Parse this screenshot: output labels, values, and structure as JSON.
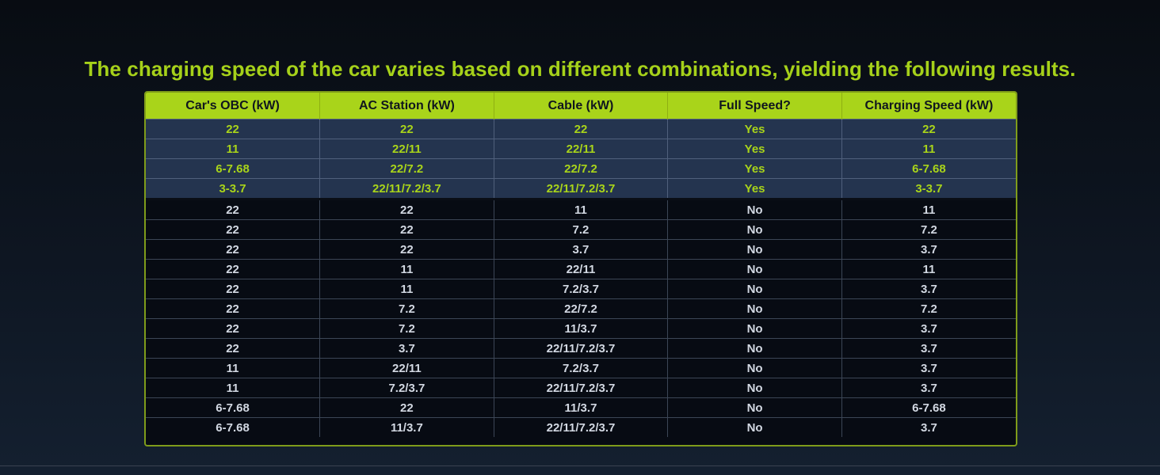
{
  "title": "The charging speed of the car varies based on different combinations, yielding the following results.",
  "colors": {
    "accent": "#a9d41a",
    "highlight_row_bg": "#24344f",
    "background": "#0b1119"
  },
  "table": {
    "headers": [
      "Car's OBC (kW)",
      "AC Station (kW)",
      "Cable (kW)",
      "Full Speed?",
      "Charging Speed (kW)"
    ],
    "highlighted_rows": [
      [
        "22",
        "22",
        "22",
        "Yes",
        "22"
      ],
      [
        "11",
        "22/11",
        "22/11",
        "Yes",
        "11"
      ],
      [
        "6-7.68",
        "22/7.2",
        "22/7.2",
        "Yes",
        "6-7.68"
      ],
      [
        "3-3.7",
        "22/11/7.2/3.7",
        "22/11/7.2/3.7",
        "Yes",
        "3-3.7"
      ]
    ],
    "rows": [
      [
        "22",
        "22",
        "11",
        "No",
        "11"
      ],
      [
        "22",
        "22",
        "7.2",
        "No",
        "7.2"
      ],
      [
        "22",
        "22",
        "3.7",
        "No",
        "3.7"
      ],
      [
        "22",
        "11",
        "22/11",
        "No",
        "11"
      ],
      [
        "22",
        "11",
        "7.2/3.7",
        "No",
        "3.7"
      ],
      [
        "22",
        "7.2",
        "22/7.2",
        "No",
        "7.2"
      ],
      [
        "22",
        "7.2",
        "11/3.7",
        "No",
        "3.7"
      ],
      [
        "22",
        "3.7",
        "22/11/7.2/3.7",
        "No",
        "3.7"
      ],
      [
        "11",
        "22/11",
        "7.2/3.7",
        "No",
        "3.7"
      ],
      [
        "11",
        "7.2/3.7",
        "22/11/7.2/3.7",
        "No",
        "3.7"
      ],
      [
        "6-7.68",
        "22",
        "11/3.7",
        "No",
        "6-7.68"
      ],
      [
        "6-7.68",
        "11/3.7",
        "22/11/7.2/3.7",
        "No",
        "3.7"
      ]
    ]
  }
}
